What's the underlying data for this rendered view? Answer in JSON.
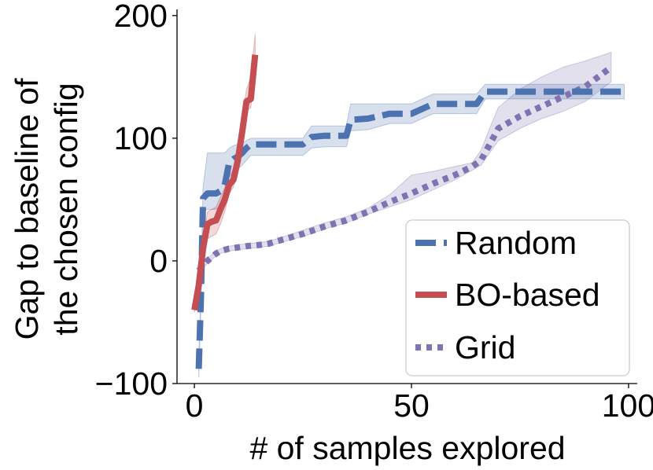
{
  "chart_data": {
    "type": "line",
    "title": "",
    "xlabel": "# of samples explored",
    "ylabel_lines": [
      "Gap to baseline of",
      "the chosen config"
    ],
    "xlim": [
      -4,
      102
    ],
    "ylim": [
      -100,
      205
    ],
    "xticks": [
      {
        "value": 0,
        "label": "0"
      },
      {
        "value": 50,
        "label": "50"
      },
      {
        "value": 100,
        "label": "100"
      }
    ],
    "yticks": [
      {
        "value": -100,
        "label": "−100"
      },
      {
        "value": 0,
        "label": "0"
      },
      {
        "value": 100,
        "label": "100"
      },
      {
        "value": 200,
        "label": "200"
      }
    ],
    "legend_position": "bottom-right",
    "series": [
      {
        "name": "Random",
        "style": "dashed",
        "color": "#4c72b0",
        "x": [
          1,
          1.5,
          2,
          3,
          5,
          6,
          7,
          8,
          9,
          10,
          11,
          12,
          13,
          14,
          15,
          20,
          25,
          27,
          30,
          35,
          36,
          40,
          45,
          50,
          55,
          60,
          65,
          67,
          70,
          75,
          80,
          85,
          90,
          95,
          99
        ],
        "y": [
          -88,
          -30,
          51,
          55,
          55,
          57,
          62,
          80,
          83,
          85,
          88,
          92,
          95,
          95,
          95,
          95,
          95,
          101,
          102,
          102,
          115,
          116,
          120,
          120,
          128,
          128,
          128,
          138,
          138,
          138,
          138,
          138,
          138,
          138,
          138
        ],
        "lower": [
          -95,
          -40,
          40,
          42,
          42,
          45,
          50,
          68,
          72,
          75,
          78,
          82,
          86,
          86,
          86,
          86,
          86,
          92,
          93,
          93,
          106,
          107,
          112,
          112,
          120,
          120,
          120,
          132,
          132,
          132,
          132,
          132,
          132,
          132,
          132
        ],
        "upper": [
          -80,
          -20,
          60,
          88,
          88,
          88,
          88,
          92,
          94,
          95,
          96,
          98,
          100,
          100,
          100,
          100,
          100,
          110,
          110,
          110,
          128,
          128,
          128,
          128,
          136,
          136,
          136,
          144,
          144,
          144,
          144,
          144,
          144,
          144,
          144
        ]
      },
      {
        "name": "BO-based",
        "style": "solid",
        "color": "#c44e52",
        "x": [
          0,
          1,
          2,
          3,
          4,
          5,
          6,
          7,
          8,
          9,
          10,
          11,
          12,
          13,
          14
        ],
        "y": [
          -40,
          -20,
          10,
          30,
          32,
          33,
          42,
          50,
          62,
          66,
          82,
          105,
          130,
          132,
          168
        ],
        "lower": [
          -42,
          -28,
          2,
          18,
          20,
          22,
          30,
          40,
          55,
          60,
          75,
          97,
          122,
          125,
          160
        ],
        "upper": [
          -38,
          -12,
          18,
          40,
          42,
          44,
          52,
          60,
          70,
          74,
          90,
          115,
          140,
          150,
          185
        ]
      },
      {
        "name": "Grid",
        "style": "dotted",
        "color": "#8172b2",
        "x": [
          1,
          2,
          3,
          4,
          5,
          6,
          8,
          10,
          12,
          15,
          17,
          20,
          25,
          30,
          35,
          40,
          45,
          50,
          55,
          60,
          64,
          66,
          68,
          70,
          75,
          80,
          85,
          90,
          96
        ],
        "y": [
          -8,
          -4,
          0,
          3,
          6,
          8,
          10,
          11,
          12,
          13,
          14,
          17,
          22,
          28,
          33,
          40,
          48,
          55,
          63,
          70,
          77,
          82,
          95,
          108,
          118,
          126,
          134,
          142,
          158
        ],
        "lower": [
          -10,
          -6,
          -2,
          1,
          4,
          6,
          8,
          9,
          10,
          11,
          12,
          15,
          20,
          26,
          31,
          38,
          44,
          50,
          58,
          66,
          74,
          78,
          88,
          98,
          108,
          116,
          122,
          130,
          146
        ],
        "upper": [
          -6,
          -2,
          2,
          5,
          8,
          10,
          12,
          13,
          14,
          15,
          16,
          19,
          25,
          31,
          36,
          43,
          54,
          70,
          73,
          77,
          80,
          90,
          108,
          125,
          140,
          150,
          158,
          163,
          170
        ]
      }
    ]
  }
}
